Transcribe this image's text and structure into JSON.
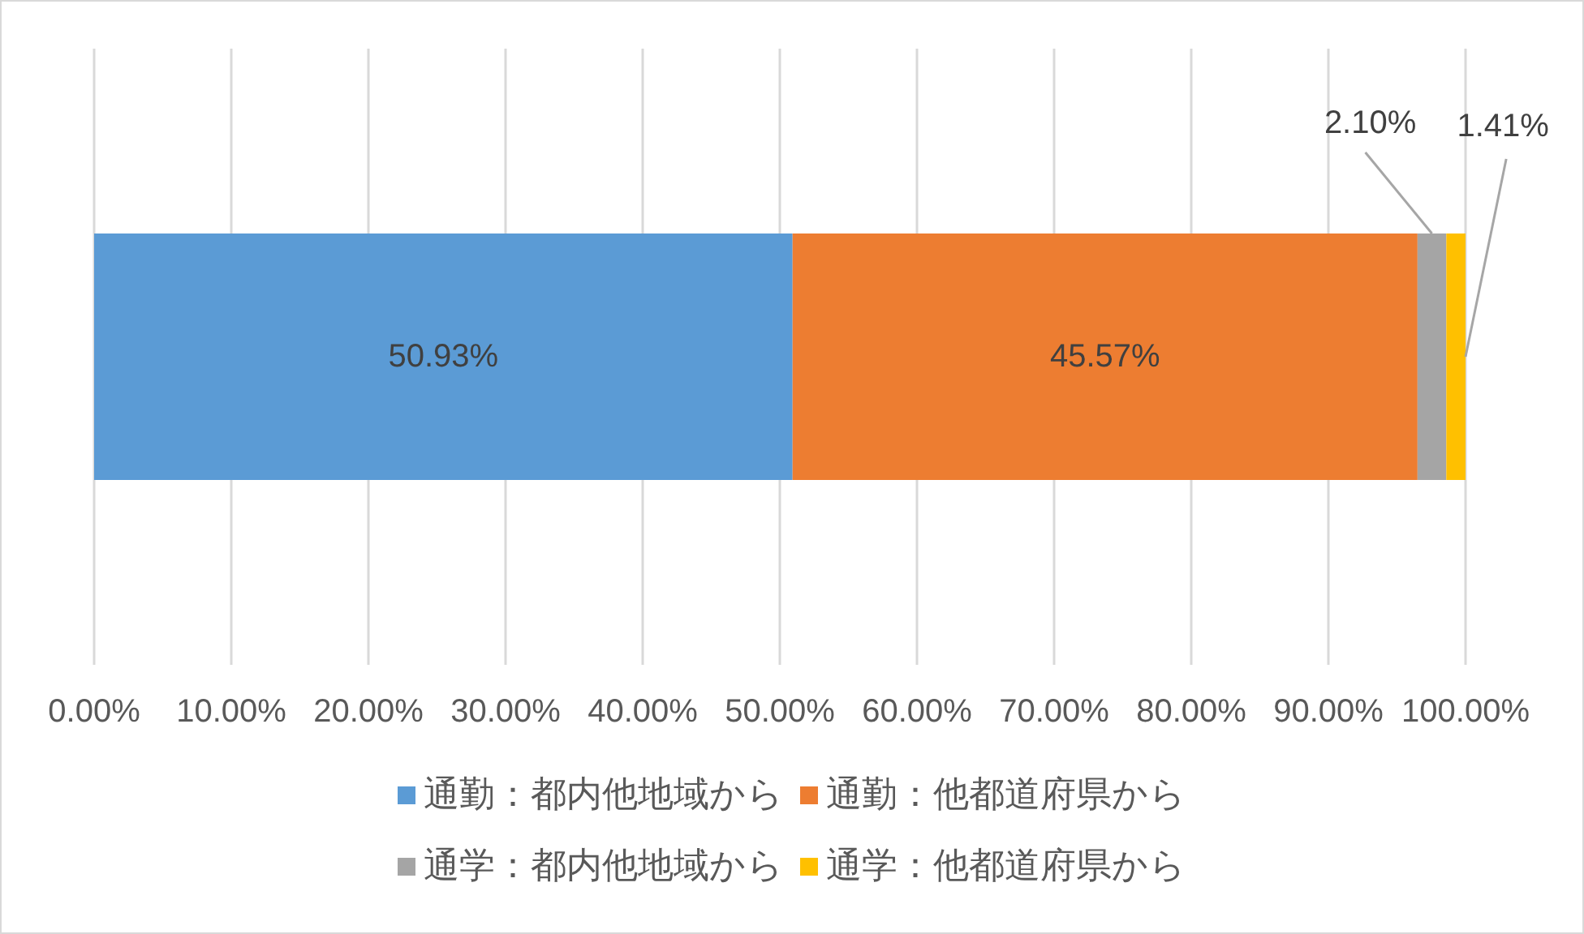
{
  "chart_data": {
    "type": "bar",
    "orientation": "horizontal",
    "stacked": true,
    "categories": [
      null
    ],
    "series": [
      {
        "name": "通勤：都内他地域から",
        "color": "#5b9bd5",
        "values": [
          50.93
        ],
        "value_labels": [
          "50.93%"
        ]
      },
      {
        "name": "通勤：他都道府県から",
        "color": "#ed7d31",
        "values": [
          45.57
        ],
        "value_labels": [
          "45.57%"
        ]
      },
      {
        "name": "通学：都内他地域から",
        "color": "#a5a5a5",
        "values": [
          2.1
        ],
        "value_labels": [
          "2.10%"
        ]
      },
      {
        "name": "通学：他都道府県から",
        "color": "#ffc000",
        "values": [
          1.41
        ],
        "value_labels": [
          "1.41%"
        ]
      }
    ],
    "xlim": [
      0,
      100
    ],
    "xticks": [
      {
        "value": 0,
        "label": "0.00%"
      },
      {
        "value": 10,
        "label": "10.00%"
      },
      {
        "value": 20,
        "label": "20.00%"
      },
      {
        "value": 30,
        "label": "30.00%"
      },
      {
        "value": 40,
        "label": "40.00%"
      },
      {
        "value": 50,
        "label": "50.00%"
      },
      {
        "value": 60,
        "label": "60.00%"
      },
      {
        "value": 70,
        "label": "70.00%"
      },
      {
        "value": 80,
        "label": "80.00%"
      },
      {
        "value": 90,
        "label": "90.00%"
      },
      {
        "value": 100,
        "label": "100.00%"
      }
    ],
    "grid": "x",
    "legend": "bottom"
  }
}
